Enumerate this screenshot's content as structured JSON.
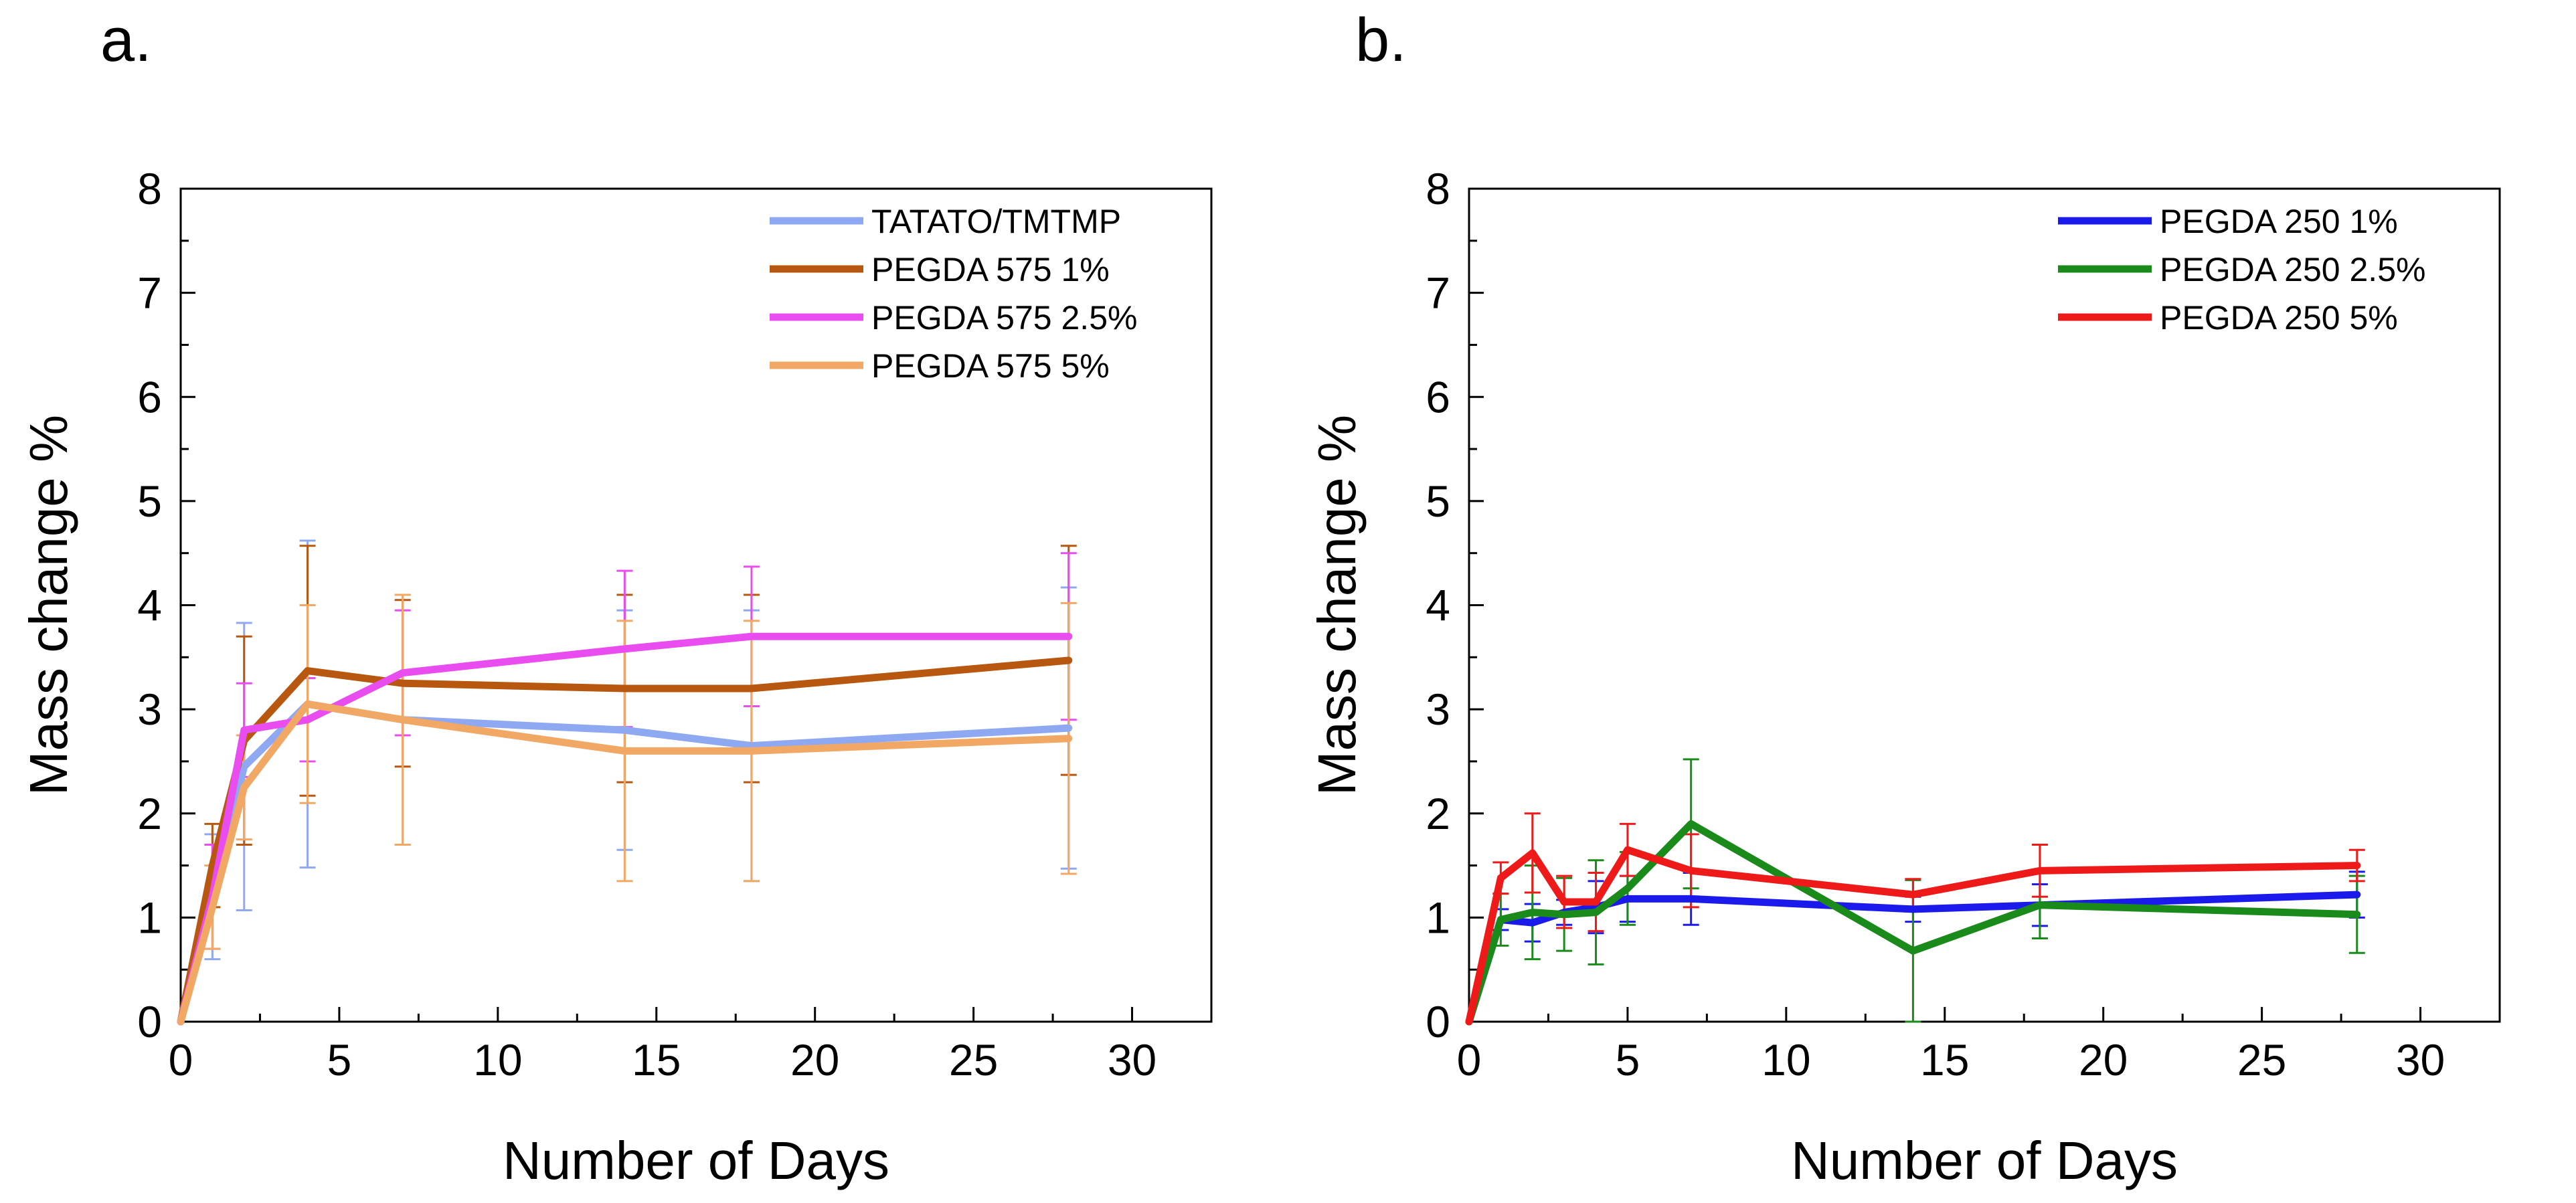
{
  "chart_data": [
    {
      "panel_label": "a.",
      "type": "line",
      "xlabel": "Number of Days",
      "ylabel": "Mass change %",
      "xlim": [
        0,
        32.5
      ],
      "ylim": [
        0,
        8
      ],
      "xticks": [
        0,
        5,
        10,
        15,
        20,
        25,
        30
      ],
      "yticks": [
        0,
        1,
        2,
        3,
        4,
        5,
        6,
        7,
        8
      ],
      "legend_position": "top-right",
      "series": [
        {
          "name": "TATATO/TMTMP",
          "color": "#8fa8f2",
          "x": [
            0,
            1,
            2,
            4,
            7,
            14,
            18,
            28
          ],
          "y": [
            0,
            1.2,
            2.45,
            3.05,
            2.9,
            2.8,
            2.65,
            2.82
          ],
          "err": [
            0,
            0.6,
            1.38,
            1.57,
            1.2,
            1.15,
            1.3,
            1.35
          ]
        },
        {
          "name": "PEGDA 575 1%",
          "color": "#b8570f",
          "x": [
            0,
            1,
            2,
            4,
            7,
            14,
            18,
            28
          ],
          "y": [
            0,
            1.5,
            2.7,
            3.37,
            3.25,
            3.2,
            3.2,
            3.47
          ],
          "err": [
            0,
            0.4,
            1.0,
            1.2,
            0.8,
            0.9,
            0.9,
            1.1
          ]
        },
        {
          "name": "PEGDA 575 2.5%",
          "color": "#e94df0",
          "x": [
            0,
            1,
            2,
            4,
            7,
            14,
            18,
            28
          ],
          "y": [
            0,
            1.2,
            2.8,
            2.9,
            3.35,
            3.58,
            3.7,
            3.7
          ],
          "err": [
            0,
            0.5,
            0.45,
            0.4,
            0.6,
            0.75,
            0.67,
            0.8
          ]
        },
        {
          "name": "PEGDA 575 5%",
          "color": "#f2a865",
          "x": [
            0,
            1,
            2,
            4,
            7,
            14,
            18,
            28
          ],
          "y": [
            0,
            1.1,
            2.25,
            3.05,
            2.9,
            2.6,
            2.6,
            2.72
          ],
          "err": [
            0,
            0.4,
            0.5,
            0.95,
            1.2,
            1.25,
            1.25,
            1.3
          ]
        }
      ]
    },
    {
      "panel_label": "b.",
      "type": "line",
      "xlabel": "Number of Days",
      "ylabel": "Mass change %",
      "xlim": [
        0,
        32.5
      ],
      "ylim": [
        0,
        8
      ],
      "xticks": [
        0,
        5,
        10,
        15,
        20,
        25,
        30
      ],
      "yticks": [
        0,
        1,
        2,
        3,
        4,
        5,
        6,
        7,
        8
      ],
      "legend_position": "top-right",
      "series": [
        {
          "name": "PEGDA 250 1%",
          "color": "#1a1aeb",
          "x": [
            0,
            1,
            2,
            3,
            4,
            5,
            7,
            14,
            18,
            28
          ],
          "y": [
            0,
            0.98,
            0.95,
            1.05,
            1.1,
            1.18,
            1.18,
            1.08,
            1.12,
            1.22
          ],
          "err": [
            0,
            0.1,
            0.18,
            0.12,
            0.25,
            0.22,
            0.25,
            0.12,
            0.2,
            0.22
          ]
        },
        {
          "name": "PEGDA 250 2.5%",
          "color": "#1a8a1a",
          "x": [
            0,
            1,
            2,
            3,
            4,
            5,
            7,
            14,
            18,
            28
          ],
          "y": [
            0,
            0.98,
            1.05,
            1.03,
            1.05,
            1.28,
            1.9,
            0.68,
            1.12,
            1.03
          ],
          "err": [
            0,
            0.25,
            0.45,
            0.35,
            0.5,
            0.35,
            0.62,
            0.68,
            0.32,
            0.37
          ]
        },
        {
          "name": "PEGDA 250 5%",
          "color": "#ee1a1a",
          "x": [
            0,
            1,
            2,
            3,
            4,
            5,
            7,
            14,
            18,
            28
          ],
          "y": [
            0,
            1.38,
            1.62,
            1.15,
            1.15,
            1.65,
            1.45,
            1.22,
            1.45,
            1.5
          ],
          "err": [
            0,
            0.15,
            0.38,
            0.25,
            0.28,
            0.25,
            0.35,
            0.15,
            0.25,
            0.15
          ]
        }
      ]
    }
  ]
}
